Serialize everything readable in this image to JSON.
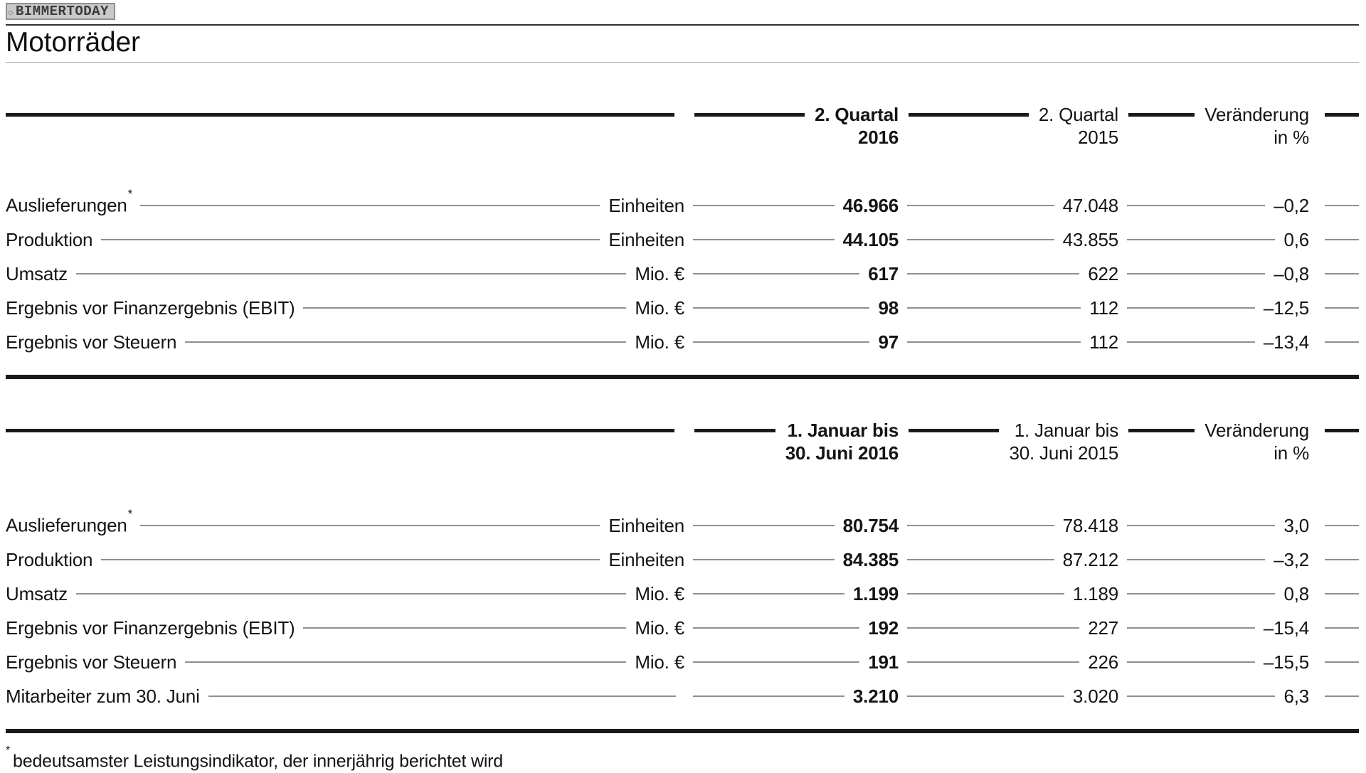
{
  "badge": {
    "label": "BIMMERTODAY"
  },
  "page": {
    "title": "Motorräder"
  },
  "tables": [
    {
      "header": {
        "col_2016": [
          "2. Quartal",
          "2016"
        ],
        "col_2015": [
          "2. Quartal",
          "2015"
        ],
        "col_change": [
          "Veränderung",
          "in %"
        ]
      },
      "rows": [
        {
          "label": "Auslieferungen",
          "label_sup": "*",
          "unit": "Einheiten",
          "v_2016": "46.966",
          "v_2015": "47.048",
          "change": "–0,2"
        },
        {
          "label": "Produktion",
          "label_sup": "",
          "unit": "Einheiten",
          "v_2016": "44.105",
          "v_2015": "43.855",
          "change": "0,6"
        },
        {
          "label": "Umsatz",
          "label_sup": "",
          "unit": "Mio. €",
          "v_2016": "617",
          "v_2015": "622",
          "change": "–0,8"
        },
        {
          "label": "Ergebnis vor Finanzergebnis (EBIT)",
          "label_sup": "",
          "unit": "Mio. €",
          "v_2016": "98",
          "v_2015": "112",
          "change": "–12,5"
        },
        {
          "label": "Ergebnis vor Steuern",
          "label_sup": "",
          "unit": "Mio. €",
          "v_2016": "97",
          "v_2015": "112",
          "change": "–13,4"
        }
      ]
    },
    {
      "header": {
        "col_2016": [
          "1. Januar bis",
          "30. Juni 2016"
        ],
        "col_2015": [
          "1. Januar bis",
          "30. Juni 2015"
        ],
        "col_change": [
          "Veränderung",
          "in %"
        ]
      },
      "rows": [
        {
          "label": "Auslieferungen",
          "label_sup": "*",
          "unit": "Einheiten",
          "v_2016": "80.754",
          "v_2015": "78.418",
          "change": "3,0"
        },
        {
          "label": "Produktion",
          "label_sup": "",
          "unit": "Einheiten",
          "v_2016": "84.385",
          "v_2015": "87.212",
          "change": "–3,2"
        },
        {
          "label": "Umsatz",
          "label_sup": "",
          "unit": "Mio. €",
          "v_2016": "1.199",
          "v_2015": "1.189",
          "change": "0,8"
        },
        {
          "label": "Ergebnis vor Finanzergebnis (EBIT)",
          "label_sup": "",
          "unit": "Mio. €",
          "v_2016": "192",
          "v_2015": "227",
          "change": "–15,4"
        },
        {
          "label": "Ergebnis vor Steuern",
          "label_sup": "",
          "unit": "Mio. €",
          "v_2016": "191",
          "v_2015": "226",
          "change": "–15,5"
        },
        {
          "label": "Mitarbeiter zum 30. Juni",
          "label_sup": "",
          "unit": "",
          "v_2016": "3.210",
          "v_2015": "3.020",
          "change": "6,3"
        }
      ]
    }
  ],
  "footnote": {
    "marker": "*",
    "text": "bedeutsamster Leistungsindikator, der innerjährig berichtet wird"
  },
  "colors": {
    "text": "#141414",
    "leader_line": "#8f8f8f",
    "rule_thick": "#1a1a1a",
    "rule_light": "#a3a3a3",
    "rule_dark": "#2f2f2f",
    "badge_background": "#c9c9c9",
    "badge_border": "#8f8f8f",
    "badge_text": "#3a3a3a"
  }
}
